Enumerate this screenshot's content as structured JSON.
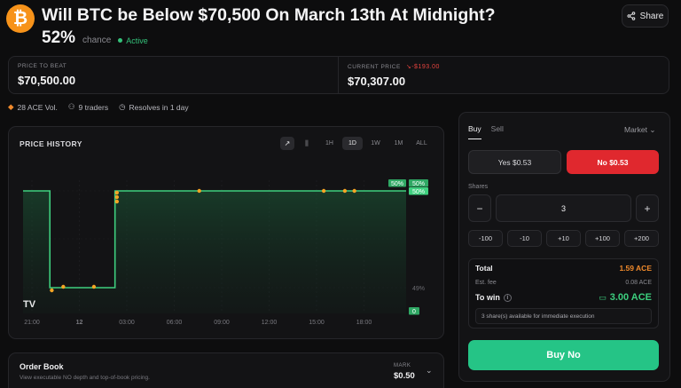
{
  "header": {
    "logo_glyph": "₿",
    "title": "Will BTC be Below $70,500 On March 13th At Midnight?",
    "chance_pct": "52%",
    "chance_label": "chance",
    "status": "Active",
    "share_label": "Share"
  },
  "prices": {
    "beat_label": "PRICE TO BEAT",
    "beat_value": "$70,500.00",
    "current_label": "CURRENT PRICE",
    "current_delta": "-$193.00",
    "current_value": "$70,307.00"
  },
  "meta": {
    "volume": "28 ACE Vol.",
    "traders": "9 traders",
    "resolves": "Resolves in 1 day"
  },
  "chart": {
    "title": "PRICE HISTORY",
    "ranges": [
      "1H",
      "1D",
      "1W",
      "1M",
      "ALL"
    ],
    "active_range": "1D"
  },
  "chart_data": {
    "type": "line",
    "x_ticks": [
      "21:00",
      "12",
      "03:00",
      "06:00",
      "09:00",
      "12:00",
      "15:00",
      "18:00"
    ],
    "y_markers": [
      {
        "label": "50%",
        "value": 50
      },
      {
        "label": "50%",
        "value": 50
      },
      {
        "label": "50%",
        "value": 50
      },
      {
        "label": "49%",
        "value": 49
      },
      {
        "label": "0",
        "value": 0
      }
    ],
    "series": [
      {
        "points": [
          [
            0.0,
            50
          ],
          [
            0.07,
            50
          ],
          [
            0.07,
            49
          ],
          [
            0.24,
            49
          ],
          [
            0.24,
            50
          ],
          [
            1.0,
            50
          ]
        ]
      }
    ],
    "trade_markers": [
      [
        0.075,
        49
      ],
      [
        0.105,
        49
      ],
      [
        0.185,
        49
      ],
      [
        0.245,
        50
      ],
      [
        0.245,
        50
      ],
      [
        0.245,
        49
      ],
      [
        0.46,
        50
      ],
      [
        0.785,
        50
      ],
      [
        0.84,
        50
      ],
      [
        0.865,
        50
      ]
    ],
    "line_color": "#3fd07f",
    "marker_color": "#f5a524"
  },
  "order_book": {
    "title": "Order Book",
    "subtitle": "View executable NO depth and top-of-book pricing.",
    "mark_label": "MARK",
    "mark_value": "$0.50"
  },
  "trade": {
    "tab_buy": "Buy",
    "tab_sell": "Sell",
    "order_type": "Market",
    "yes_label": "Yes $0.53",
    "no_label": "No $0.53",
    "shares_label": "Shares",
    "minus": "−",
    "plus": "+",
    "quantity": "3",
    "quick": [
      "-100",
      "-10",
      "+10",
      "+100",
      "+200"
    ],
    "total_label": "Total",
    "total_value": "1.59 ACE",
    "fee_label": "Est. fee",
    "fee_value": "0.08 ACE",
    "win_label": "To win",
    "win_value": "3.00 ACE",
    "availability": "3 share(s) available for immediate execution",
    "buy_button": "Buy No"
  },
  "colors": {
    "accent_green": "#25c486",
    "accent_red": "#e0282e",
    "btc_orange": "#f7931a"
  }
}
